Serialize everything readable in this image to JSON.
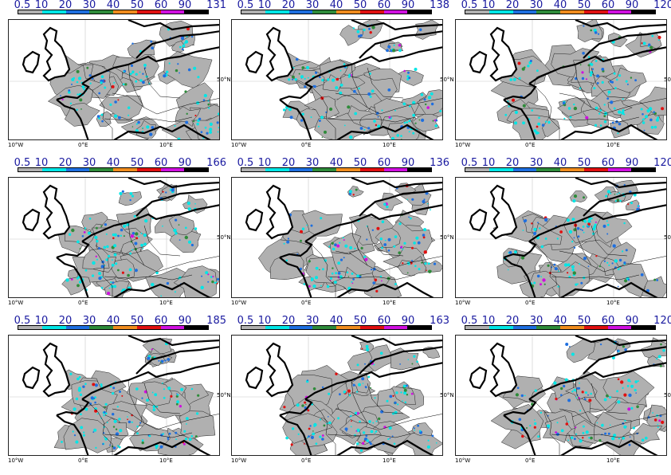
{
  "colorbar": {
    "levels": [
      "0.5",
      "10",
      "20",
      "30",
      "40",
      "50",
      "60",
      "90"
    ],
    "colors": [
      "#b0b0b0",
      "#00e6e6",
      "#1e6fe0",
      "#2e8b3a",
      "#f08c1e",
      "#e01010",
      "#d010e0",
      "#000000"
    ]
  },
  "axes": {
    "xticks": [
      "10°W",
      "0°E",
      "10°E"
    ],
    "lat_label": "50°N"
  },
  "panels": [
    {
      "max": "131"
    },
    {
      "max": "138"
    },
    {
      "max": "120"
    },
    {
      "max": "166"
    },
    {
      "max": "136"
    },
    {
      "max": "120"
    },
    {
      "max": "185"
    },
    {
      "max": "163"
    },
    {
      "max": "120"
    }
  ]
}
